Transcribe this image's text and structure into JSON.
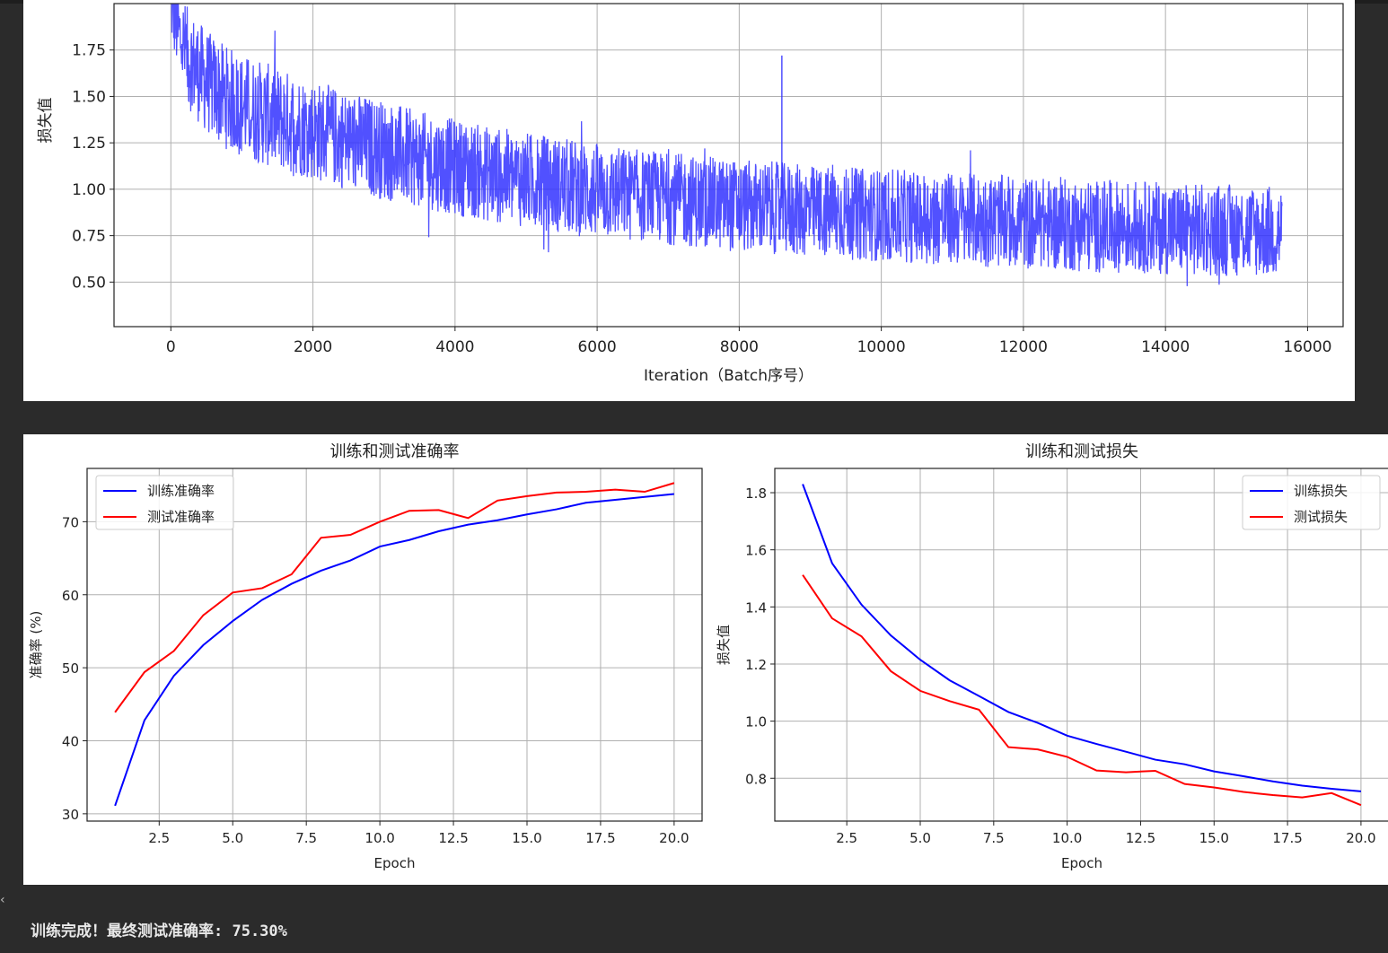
{
  "chart_data": [
    {
      "type": "line",
      "title": "",
      "xlabel": "Iteration（Batch序号）",
      "ylabel": "损失值",
      "xlim": [
        -800,
        16500
      ],
      "ylim": [
        0.26,
        2.0
      ],
      "xticks": [
        "0",
        "2000",
        "4000",
        "6000",
        "8000",
        "10000",
        "12000",
        "14000",
        "16000"
      ],
      "xtick_values": [
        0,
        2000,
        4000,
        6000,
        8000,
        10000,
        12000,
        14000,
        16000
      ],
      "yticks": [
        "0.50",
        "0.75",
        "1.00",
        "1.25",
        "1.50",
        "1.75"
      ],
      "ytick_values": [
        0.5,
        0.75,
        1.0,
        1.25,
        1.5,
        1.75
      ],
      "grid": true,
      "series": [
        {
          "color": "#3333ff",
          "x": [
            0,
            100,
            250,
            500,
            750,
            1000,
            1500,
            2000,
            2500,
            3000,
            3500,
            4000,
            4500,
            5000,
            5500,
            6000,
            6500,
            7000,
            7500,
            8000,
            8500,
            9000,
            9500,
            10000,
            10500,
            11000,
            11500,
            12000,
            12500,
            13000,
            13500,
            14000,
            14500,
            15000,
            15640
          ],
          "center": [
            2.0,
            1.85,
            1.7,
            1.58,
            1.5,
            1.45,
            1.38,
            1.32,
            1.26,
            1.21,
            1.16,
            1.12,
            1.08,
            1.05,
            1.02,
            0.99,
            0.97,
            0.95,
            0.93,
            0.91,
            0.9,
            0.88,
            0.87,
            0.86,
            0.85,
            0.84,
            0.83,
            0.82,
            0.81,
            0.8,
            0.8,
            0.79,
            0.78,
            0.78,
            0.77
          ],
          "band": [
            0.2,
            0.24,
            0.27,
            0.28,
            0.28,
            0.28,
            0.28,
            0.27,
            0.27,
            0.27,
            0.26,
            0.26,
            0.26,
            0.26,
            0.26,
            0.26,
            0.25,
            0.25,
            0.25,
            0.25,
            0.25,
            0.25,
            0.25,
            0.25,
            0.25,
            0.25,
            0.25,
            0.25,
            0.25,
            0.25,
            0.25,
            0.25,
            0.25,
            0.25,
            0.25
          ]
        }
      ]
    },
    {
      "type": "line",
      "title": "训练和测试准确率",
      "xlabel": "Epoch",
      "ylabel": "准确率 (%)",
      "xlim": [
        0.05,
        20.95
      ],
      "ylim": [
        29.0,
        77.3
      ],
      "xticks": [
        "2.5",
        "5.0",
        "7.5",
        "10.0",
        "12.5",
        "15.0",
        "17.5",
        "20.0"
      ],
      "xtick_values": [
        2.5,
        5.0,
        7.5,
        10.0,
        12.5,
        15.0,
        17.5,
        20.0
      ],
      "yticks": [
        "30",
        "40",
        "50",
        "60",
        "70"
      ],
      "ytick_values": [
        30,
        40,
        50,
        60,
        70
      ],
      "grid": true,
      "legend": "upper left",
      "x": [
        1,
        2,
        3,
        4,
        5,
        6,
        7,
        8,
        9,
        10,
        11,
        12,
        13,
        14,
        15,
        16,
        17,
        18,
        19,
        20
      ],
      "series": [
        {
          "name": "训练准确率",
          "color": "#0000ff",
          "values": [
            31.1,
            42.8,
            48.9,
            53.1,
            56.4,
            59.3,
            61.5,
            63.3,
            64.7,
            66.6,
            67.5,
            68.7,
            69.6,
            70.2,
            71.0,
            71.7,
            72.6,
            73.0,
            73.4,
            73.8
          ]
        },
        {
          "name": "测试准确率",
          "color": "#ff0000",
          "values": [
            43.9,
            49.4,
            52.3,
            57.2,
            60.3,
            60.9,
            62.8,
            67.8,
            68.2,
            70.0,
            71.5,
            71.6,
            70.5,
            72.9,
            73.5,
            74.0,
            74.1,
            74.4,
            74.1,
            75.3
          ]
        }
      ]
    },
    {
      "type": "line",
      "title": "训练和测试损失",
      "xlabel": "Epoch",
      "ylabel": "损失值",
      "xlim": [
        0.05,
        20.95
      ],
      "ylim": [
        0.65,
        1.885
      ],
      "xticks": [
        "2.5",
        "5.0",
        "7.5",
        "10.0",
        "12.5",
        "15.0",
        "17.5",
        "20.0"
      ],
      "xtick_values": [
        2.5,
        5.0,
        7.5,
        10.0,
        12.5,
        15.0,
        17.5,
        20.0
      ],
      "yticks": [
        "0.8",
        "1.0",
        "1.2",
        "1.4",
        "1.6",
        "1.8"
      ],
      "ytick_values": [
        0.8,
        1.0,
        1.2,
        1.4,
        1.6,
        1.8
      ],
      "grid": true,
      "legend": "upper right",
      "x": [
        1,
        2,
        3,
        4,
        5,
        6,
        7,
        8,
        9,
        10,
        11,
        12,
        13,
        14,
        15,
        16,
        17,
        18,
        19,
        20
      ],
      "series": [
        {
          "name": "训练损失",
          "color": "#0000ff",
          "values": [
            1.83,
            1.553,
            1.408,
            1.3,
            1.215,
            1.143,
            1.088,
            1.032,
            0.994,
            0.949,
            0.92,
            0.893,
            0.865,
            0.849,
            0.824,
            0.807,
            0.789,
            0.774,
            0.763,
            0.754
          ]
        },
        {
          "name": "测试损失",
          "color": "#ff0000",
          "values": [
            1.512,
            1.36,
            1.297,
            1.175,
            1.106,
            1.07,
            1.04,
            0.909,
            0.901,
            0.875,
            0.827,
            0.821,
            0.826,
            0.78,
            0.768,
            0.752,
            0.741,
            0.733,
            0.748,
            0.706
          ]
        }
      ]
    }
  ],
  "output": {
    "message": "训练完成！最终测试准确率: 75.30%"
  }
}
